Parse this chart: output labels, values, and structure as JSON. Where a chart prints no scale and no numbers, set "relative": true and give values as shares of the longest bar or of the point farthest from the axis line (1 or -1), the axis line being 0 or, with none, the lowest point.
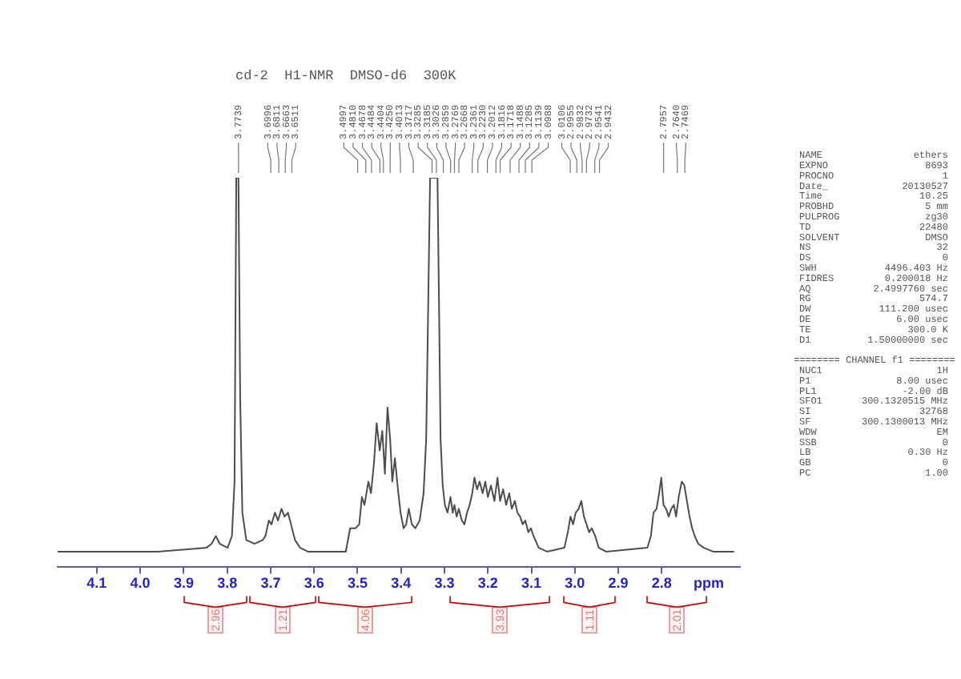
{
  "chart_data": {
    "type": "line",
    "title": "cd-2  H1-NMR  DMSO-d6  300K",
    "xlabel": "ppm",
    "relative": true,
    "color": "#4d4d4d",
    "xlim": [
      4.19,
      2.62
    ],
    "xticks": [
      4.1,
      {
        "value": 4,
        "label": "4.0"
      },
      3.9,
      3.8,
      3.7,
      3.6,
      3.5,
      3.4,
      3.3,
      3.2,
      3.1,
      {
        "value": 3,
        "label": "3.0"
      },
      2.9,
      2.8
    ],
    "x": [
      4.19,
      4.1,
      4.0,
      3.96,
      3.848,
      3.836,
      3.826,
      3.817,
      3.799,
      3.789,
      3.783,
      3.779,
      3.774,
      3.77,
      3.765,
      3.756,
      3.737,
      3.718,
      3.712,
      3.704,
      3.698,
      3.69,
      3.683,
      3.675,
      3.668,
      3.66,
      3.653,
      3.644,
      3.632,
      3.614,
      3.527,
      3.517,
      3.505,
      3.496,
      3.49,
      3.484,
      3.475,
      3.469,
      3.462,
      3.456,
      3.449,
      3.443,
      3.437,
      3.431,
      3.425,
      3.42,
      3.414,
      3.407,
      3.401,
      3.394,
      3.388,
      3.382,
      3.375,
      3.367,
      3.357,
      3.348,
      3.342,
      3.337,
      3.333,
      3.316,
      3.312,
      3.309,
      3.304,
      3.299,
      3.293,
      3.286,
      3.281,
      3.277,
      3.272,
      3.267,
      3.26,
      3.254,
      3.248,
      3.242,
      3.236,
      3.231,
      3.225,
      3.219,
      3.212,
      3.206,
      3.2,
      3.193,
      3.185,
      3.178,
      3.172,
      3.165,
      3.158,
      3.151,
      3.145,
      3.138,
      3.132,
      3.126,
      3.12,
      3.114,
      3.107,
      3.101,
      3.095,
      3.083,
      3.064,
      3.024,
      3.016,
      3.01,
      3.004,
      2.998,
      2.991,
      2.985,
      2.979,
      2.973,
      2.967,
      2.961,
      2.953,
      2.945,
      2.928,
      2.833,
      2.825,
      2.819,
      2.812,
      2.806,
      2.801,
      2.796,
      2.79,
      2.784,
      2.778,
      2.772,
      2.767,
      2.761,
      2.754,
      2.748,
      2.742,
      2.736,
      2.73,
      2.724,
      2.716,
      2.703,
      2.682,
      2.635
    ],
    "values": [
      0.04,
      0.04,
      0.04,
      0.04,
      0.05,
      0.06,
      0.08,
      0.06,
      0.05,
      0.08,
      0.22,
      1,
      1,
      0.43,
      0.14,
      0.07,
      0.06,
      0.07,
      0.08,
      0.12,
      0.11,
      0.14,
      0.12,
      0.15,
      0.13,
      0.14,
      0.11,
      0.07,
      0.05,
      0.04,
      0.04,
      0.1,
      0.1,
      0.11,
      0.18,
      0.16,
      0.22,
      0.19,
      0.27,
      0.37,
      0.3,
      0.35,
      0.24,
      0.41,
      0.33,
      0.22,
      0.28,
      0.2,
      0.14,
      0.1,
      0.11,
      0.15,
      0.11,
      0.1,
      0.12,
      0.19,
      0.33,
      0.7,
      1,
      1,
      0.63,
      0.33,
      0.21,
      0.16,
      0.14,
      0.18,
      0.14,
      0.16,
      0.13,
      0.15,
      0.12,
      0.11,
      0.14,
      0.16,
      0.19,
      0.23,
      0.2,
      0.22,
      0.19,
      0.22,
      0.18,
      0.21,
      0.17,
      0.23,
      0.17,
      0.2,
      0.16,
      0.19,
      0.15,
      0.17,
      0.14,
      0.13,
      0.11,
      0.12,
      0.09,
      0.1,
      0.08,
      0.05,
      0.04,
      0.05,
      0.09,
      0.13,
      0.11,
      0.14,
      0.15,
      0.17,
      0.13,
      0.11,
      0.09,
      0.1,
      0.08,
      0.05,
      0.04,
      0.05,
      0.08,
      0.14,
      0.15,
      0.19,
      0.23,
      0.16,
      0.15,
      0.13,
      0.15,
      0.16,
      0.13,
      0.18,
      0.22,
      0.21,
      0.17,
      0.13,
      0.1,
      0.08,
      0.06,
      0.05,
      0.04,
      0.04
    ],
    "annotations": [
      {
        "text": "3.7739",
        "x": 3.7739
      },
      {
        "text": "3.6996",
        "x": 3.6996
      },
      {
        "text": "3.6811",
        "x": 3.6811
      },
      {
        "text": "3.6663",
        "x": 3.6663
      },
      {
        "text": "3.6511",
        "x": 3.6511
      },
      {
        "text": "3.4997",
        "x": 3.4997
      },
      {
        "text": "3.4810",
        "x": 3.481
      },
      {
        "text": "3.4678",
        "x": 3.4678
      },
      {
        "text": "3.4484",
        "x": 3.4484
      },
      {
        "text": "3.4404",
        "x": 3.4404
      },
      {
        "text": "3.4250",
        "x": 3.425
      },
      {
        "text": "3.4013",
        "x": 3.4013
      },
      {
        "text": "3.3717",
        "x": 3.3717
      },
      {
        "text": "3.3285",
        "x": 3.3285
      },
      {
        "text": "3.3185",
        "x": 3.3185
      },
      {
        "text": "3.3026",
        "x": 3.3026
      },
      {
        "text": "3.2859",
        "x": 3.2859
      },
      {
        "text": "3.2769",
        "x": 3.2769
      },
      {
        "text": "3.2668",
        "x": 3.2668
      },
      {
        "text": "3.2361",
        "x": 3.2361
      },
      {
        "text": "3.2230",
        "x": 3.223
      },
      {
        "text": "3.2012",
        "x": 3.2012
      },
      {
        "text": "3.1816",
        "x": 3.1816
      },
      {
        "text": "3.1718",
        "x": 3.1718
      },
      {
        "text": "3.1488",
        "x": 3.1488
      },
      {
        "text": "3.1285",
        "x": 3.1285
      },
      {
        "text": "3.1139",
        "x": 3.1139
      },
      {
        "text": "3.0988",
        "x": 3.0988
      },
      {
        "text": "3.0106",
        "x": 3.0106
      },
      {
        "text": "2.9955",
        "x": 2.9955
      },
      {
        "text": "2.9832",
        "x": 2.9832
      },
      {
        "text": "2.9732",
        "x": 2.9732
      },
      {
        "text": "2.9541",
        "x": 2.9541
      },
      {
        "text": "2.9432",
        "x": 2.9432
      },
      {
        "text": "2.7957",
        "x": 2.7957
      },
      {
        "text": "2.7640",
        "x": 2.764
      },
      {
        "text": "2.7469",
        "x": 2.7469
      },
      "2.96",
      "1.21",
      "4.06",
      "3.93",
      "1.11",
      "2.01",
      "NAME\tethers\nEXPNO\t8693\nPROCNO\t1\nDate_\t20130527\nTime\t10.25\nPROBHD\t5 mm\nPULPROG\tzg30\nTD\t22480\nSOLVENT\tDMSO\nNS\t32\nDS\t0\nSWH\t4496.403 Hz\nFIDRES\t0.200018 Hz\nAQ\t2.4997760 sec\nRG\t574.7\nDW\t111.200 usec\nDE\t6.00 usec\nTE\t300.0 K\nD1\t1.50000000 sec\n\n======== CHANNEL f1 ========\nNUC1\t1H\nP1\t8.00 usec\nPL1\t-2.00 dB\nSFO1\t300.1320515 MHz\nSI\t32768\nSF\t300.1300013 MHz\nWDW\tEM\nSSB\t0\nLB\t0.30 Hz\nGB\t0\nPC\t1.00"
    ]
  }
}
